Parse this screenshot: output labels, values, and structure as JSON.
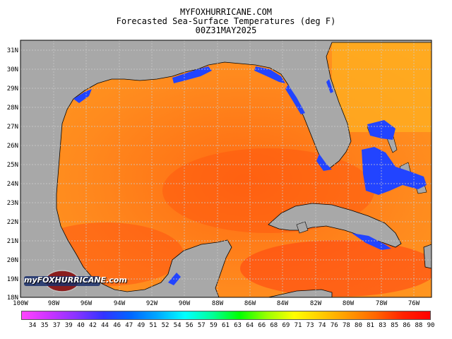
{
  "header": {
    "site": "MYFOXHURRICANE.COM",
    "title": "Forecasted Sea-Surface Temperatures (deg F)",
    "valid_time": "00Z31MAY2025"
  },
  "map": {
    "region": "Gulf of Mexico",
    "lat_labels": [
      "31N",
      "30N",
      "29N",
      "28N",
      "27N",
      "26N",
      "25N",
      "24N",
      "23N",
      "22N",
      "21N",
      "20N",
      "19N",
      "18N"
    ],
    "lon_labels": [
      "100W",
      "98W",
      "96W",
      "94W",
      "92W",
      "90W",
      "88W",
      "86W",
      "84W",
      "82W",
      "80W",
      "78W",
      "76W"
    ],
    "land_color": "#a8a8a8",
    "grid_style": "dotted"
  },
  "colorbar": {
    "unit": "deg F",
    "labels": [
      "34",
      "35",
      "37",
      "39",
      "40",
      "42",
      "44",
      "46",
      "47",
      "49",
      "51",
      "52",
      "54",
      "56",
      "57",
      "59",
      "61",
      "63",
      "64",
      "66",
      "68",
      "69",
      "71",
      "73",
      "74",
      "76",
      "78",
      "80",
      "81",
      "83",
      "85",
      "86",
      "88",
      "90"
    ],
    "gradient_colors": [
      "#ff44ff",
      "#cc33ff",
      "#8833ff",
      "#3333ff",
      "#0066ff",
      "#00aaff",
      "#00ffff",
      "#00ff99",
      "#00ff00",
      "#99ff00",
      "#ffff00",
      "#ffcc00",
      "#ff9900",
      "#ff6600",
      "#ff2200",
      "#ff0000"
    ]
  },
  "logo": {
    "text": "myFOXHURRICANE.com"
  }
}
